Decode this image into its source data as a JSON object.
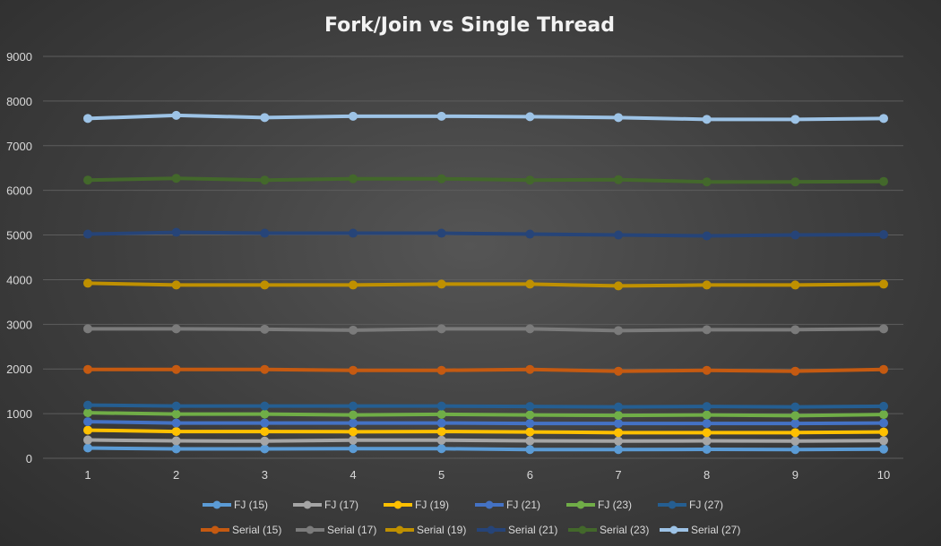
{
  "chart_data": {
    "type": "line",
    "title": "Fork/Join vs Single Thread",
    "xlabel": "",
    "ylabel": "",
    "x": [
      1,
      2,
      3,
      4,
      5,
      6,
      7,
      8,
      9,
      10
    ],
    "ylim": [
      0,
      9000
    ],
    "yticks": [
      0,
      1000,
      2000,
      3000,
      4000,
      5000,
      6000,
      7000,
      8000,
      9000
    ],
    "grid": true,
    "legend_position": "bottom",
    "series": [
      {
        "name": "FJ (15)",
        "color": "#5b9bd5",
        "values": [
          230,
          210,
          210,
          215,
          215,
          195,
          195,
          200,
          195,
          205
        ]
      },
      {
        "name": "FJ (17)",
        "color": "#a5a5a5",
        "values": [
          410,
          390,
          385,
          405,
          405,
          390,
          385,
          390,
          385,
          395
        ]
      },
      {
        "name": "FJ (19)",
        "color": "#ffc000",
        "values": [
          630,
          600,
          600,
          595,
          600,
          590,
          575,
          575,
          575,
          590
        ]
      },
      {
        "name": "FJ (21)",
        "color": "#4472c4",
        "values": [
          820,
          790,
          790,
          790,
          790,
          780,
          780,
          780,
          780,
          790
        ]
      },
      {
        "name": "FJ (23)",
        "color": "#70ad47",
        "values": [
          1020,
          990,
          990,
          970,
          985,
          970,
          960,
          970,
          955,
          980
        ]
      },
      {
        "name": "FJ (27)",
        "color": "#255e91",
        "values": [
          1190,
          1170,
          1170,
          1170,
          1170,
          1160,
          1150,
          1160,
          1150,
          1165
        ]
      },
      {
        "name": "Serial (15)",
        "color": "#c55a11",
        "values": [
          1990,
          1990,
          1990,
          1970,
          1970,
          1990,
          1950,
          1970,
          1950,
          1990
        ]
      },
      {
        "name": "Serial (17)",
        "color": "#7b7b7b",
        "values": [
          2900,
          2900,
          2890,
          2870,
          2900,
          2900,
          2860,
          2880,
          2880,
          2900
        ]
      },
      {
        "name": "Serial (19)",
        "color": "#bf9000",
        "values": [
          3920,
          3880,
          3880,
          3880,
          3900,
          3900,
          3860,
          3880,
          3880,
          3900
        ]
      },
      {
        "name": "Serial (21)",
        "color": "#264478",
        "values": [
          5020,
          5060,
          5040,
          5040,
          5040,
          5020,
          5000,
          4980,
          5000,
          5010
        ]
      },
      {
        "name": "Serial (23)",
        "color": "#43682b",
        "values": [
          6230,
          6270,
          6230,
          6260,
          6260,
          6230,
          6240,
          6190,
          6190,
          6200
        ]
      },
      {
        "name": "Serial (27)",
        "color": "#9dc3e6",
        "values": [
          7610,
          7680,
          7630,
          7660,
          7660,
          7650,
          7630,
          7590,
          7590,
          7610
        ]
      }
    ]
  }
}
